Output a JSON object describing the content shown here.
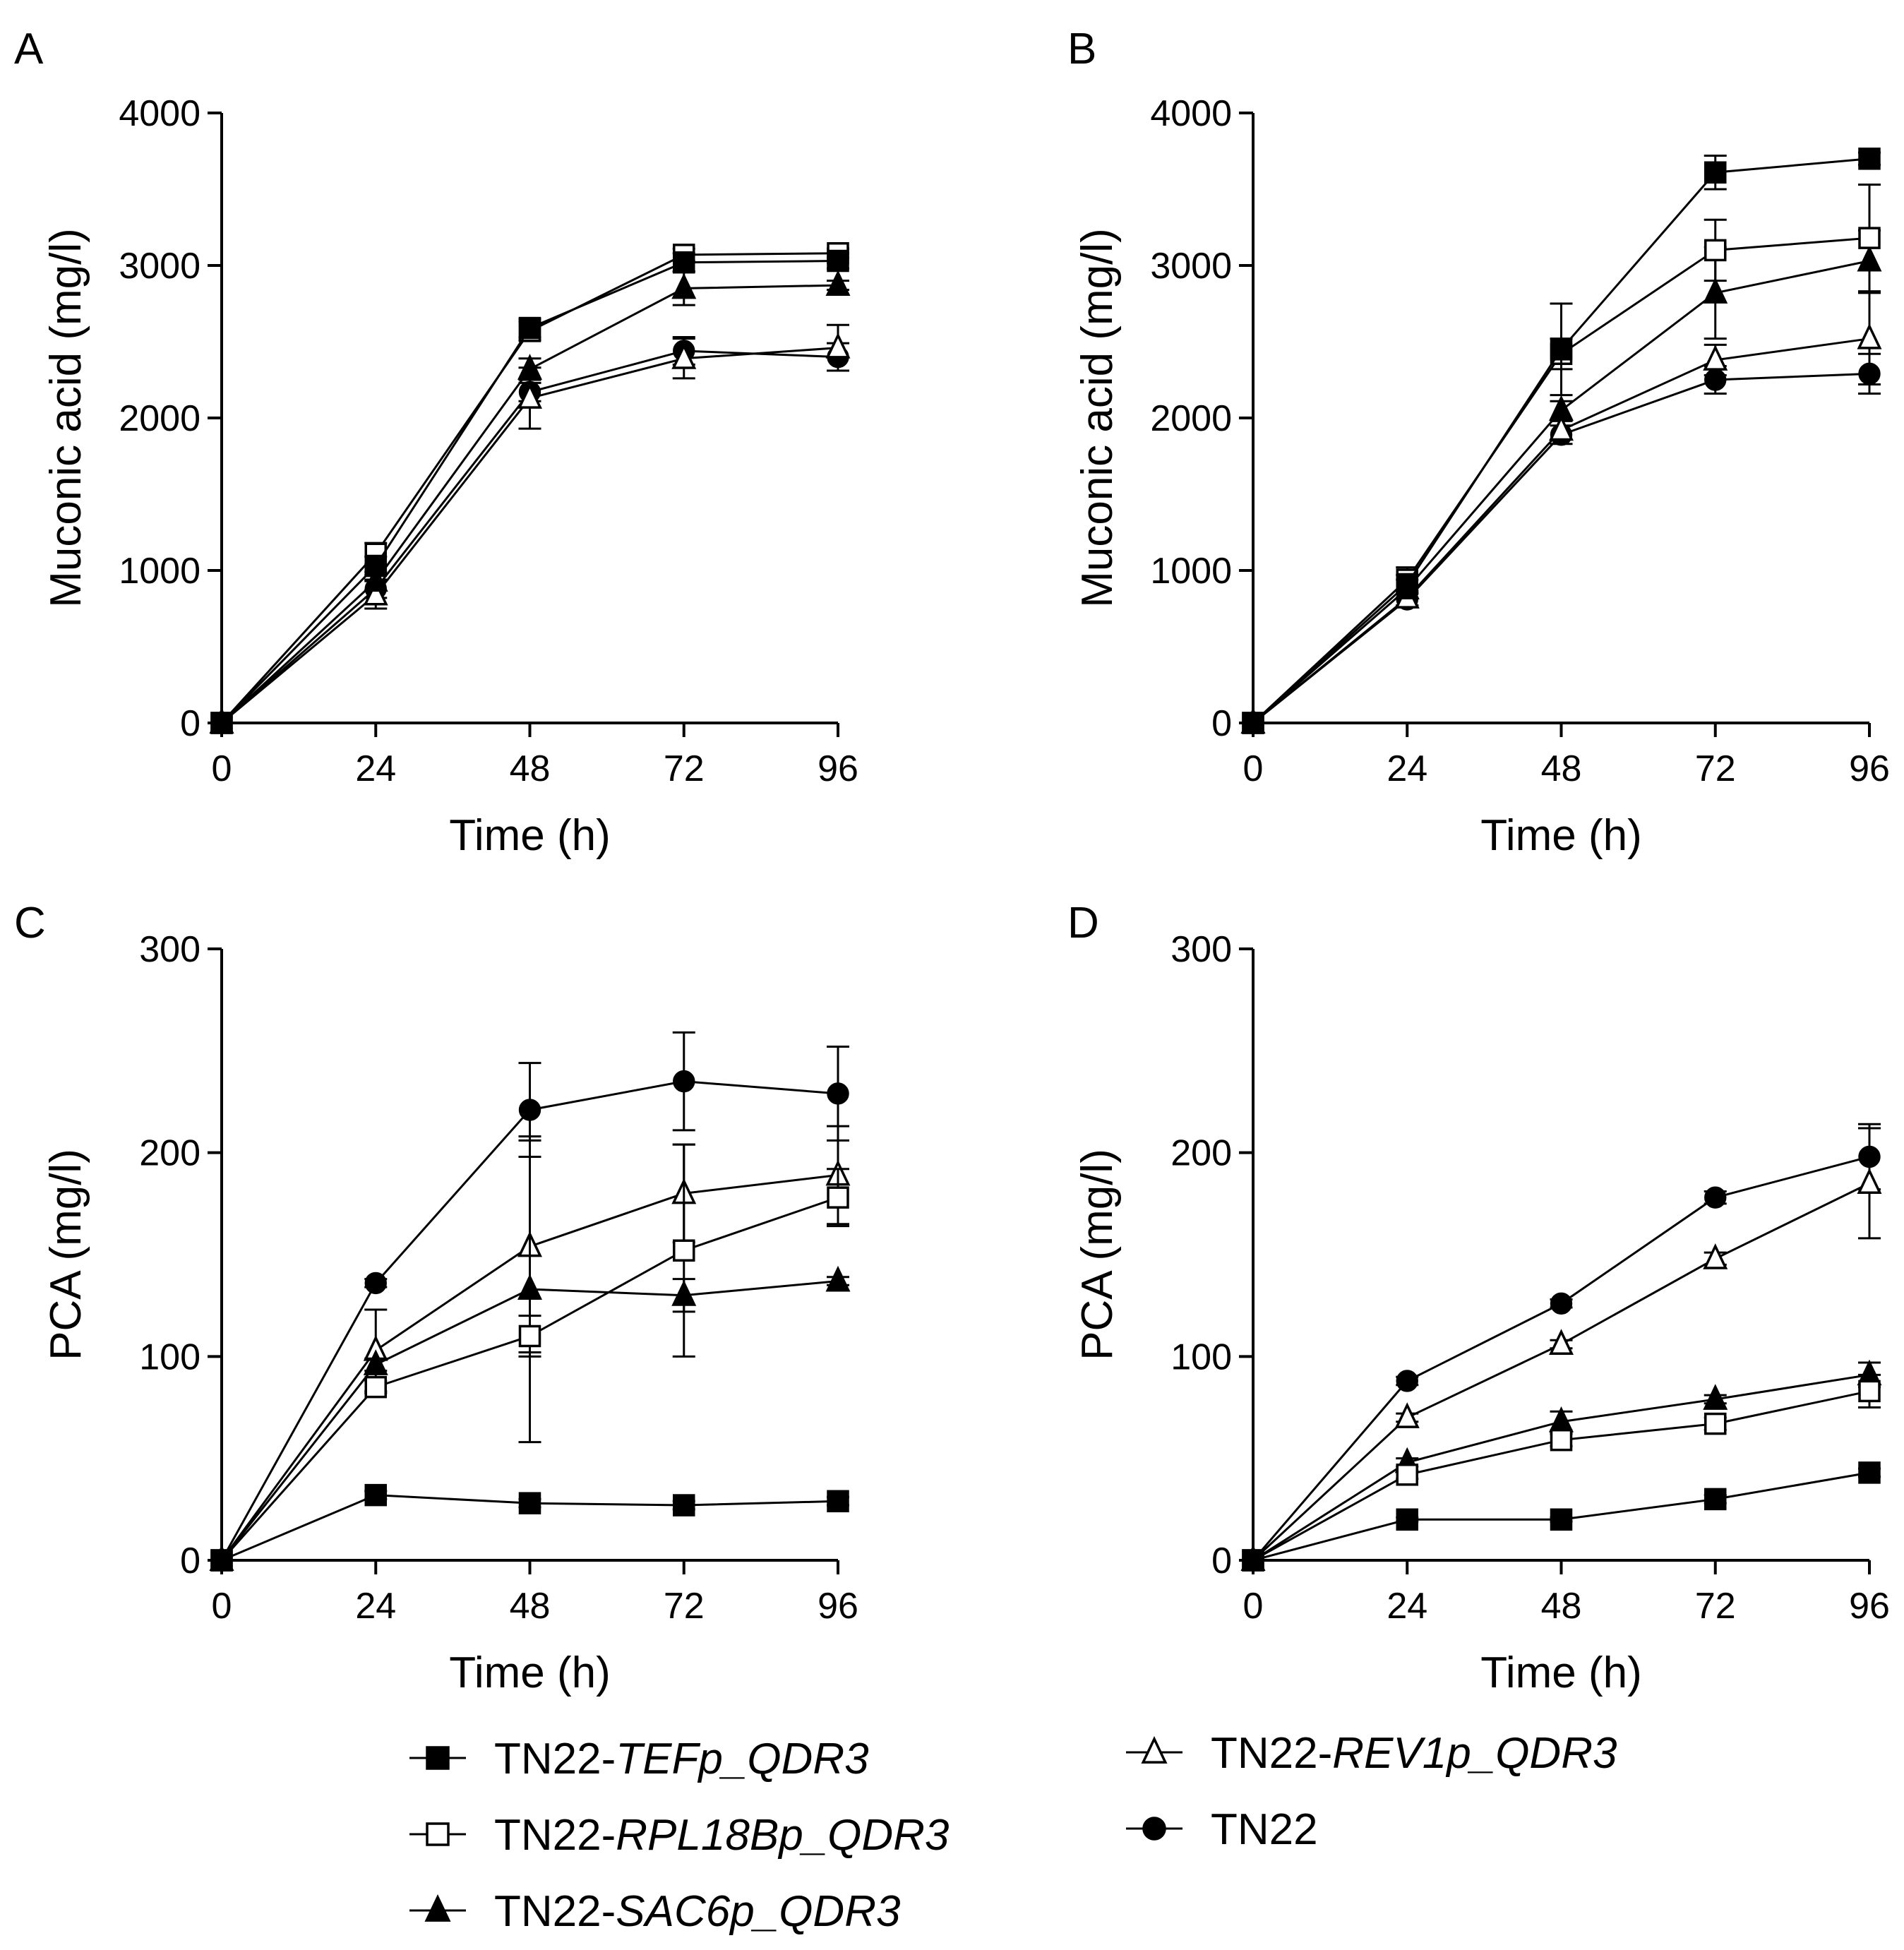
{
  "chart_data": [
    {
      "type": "line",
      "panel": "A",
      "xlabel": "Time (h)",
      "ylabel": "Muconic acid (mg/l)",
      "xlim": [
        0,
        96
      ],
      "ylim": [
        0,
        4000
      ],
      "xticks": [
        "0",
        "24",
        "48",
        "72",
        "96"
      ],
      "yticks": [
        "0",
        "1000",
        "2000",
        "3000",
        "4000"
      ],
      "grid": false,
      "x": [
        0,
        24,
        48,
        72,
        96
      ],
      "series": [
        {
          "name_prefix": "TN22-",
          "name_italic": "TEFp_QDR3",
          "marker": "filled-square",
          "values": [
            0,
            1030,
            2590,
            3020,
            3030
          ],
          "errors": [
            0,
            60,
            60,
            60,
            50
          ]
        },
        {
          "name_prefix": "TN22-",
          "name_italic": "RPL18Bp_QDR3",
          "marker": "open-square",
          "values": [
            0,
            1110,
            2570,
            3070,
            3080
          ],
          "errors": [
            0,
            70,
            60,
            40,
            30
          ]
        },
        {
          "name_prefix": "TN22-",
          "name_italic": "SAC6p_QDR3",
          "marker": "filled-triangle",
          "values": [
            0,
            930,
            2320,
            2850,
            2870
          ],
          "errors": [
            0,
            60,
            70,
            110,
            30
          ]
        },
        {
          "name_prefix": "TN22-",
          "name_italic": "REV1p_QDR3",
          "marker": "open-triangle",
          "values": [
            0,
            840,
            2130,
            2390,
            2460
          ],
          "errors": [
            0,
            90,
            200,
            130,
            150
          ]
        },
        {
          "name_prefix": "TN22",
          "name_italic": "",
          "marker": "filled-circle",
          "values": [
            0,
            880,
            2170,
            2440,
            2400
          ],
          "errors": [
            0,
            60,
            60,
            90,
            90
          ]
        }
      ]
    },
    {
      "type": "line",
      "panel": "B",
      "xlabel": "Time (h)",
      "ylabel": "Muconic acid (mg/l)",
      "xlim": [
        0,
        96
      ],
      "ylim": [
        0,
        4000
      ],
      "xticks": [
        "0",
        "24",
        "48",
        "72",
        "96"
      ],
      "yticks": [
        "0",
        "1000",
        "2000",
        "3000",
        "4000"
      ],
      "grid": false,
      "x": [
        0,
        24,
        48,
        72,
        96
      ],
      "series": [
        {
          "name_prefix": "TN22-",
          "name_italic": "TEFp_QDR3",
          "marker": "filled-square",
          "values": [
            0,
            910,
            2450,
            3610,
            3700
          ],
          "errors": [
            0,
            60,
            300,
            110,
            40
          ]
        },
        {
          "name_prefix": "TN22-",
          "name_italic": "RPL18Bp_QDR3",
          "marker": "open-square",
          "values": [
            0,
            940,
            2420,
            3100,
            3180
          ],
          "errors": [
            0,
            80,
            100,
            200,
            350
          ]
        },
        {
          "name_prefix": "TN22-",
          "name_italic": "SAC6p_QDR3",
          "marker": "filled-triangle",
          "values": [
            0,
            880,
            2050,
            2820,
            3030
          ],
          "errors": [
            0,
            60,
            60,
            300,
            200
          ]
        },
        {
          "name_prefix": "TN22-",
          "name_italic": "REV1p_QDR3",
          "marker": "open-triangle",
          "values": [
            0,
            820,
            1920,
            2380,
            2520
          ],
          "errors": [
            0,
            50,
            60,
            100,
            300
          ]
        },
        {
          "name_prefix": "TN22",
          "name_italic": "",
          "marker": "filled-circle",
          "values": [
            0,
            810,
            1890,
            2250,
            2290
          ],
          "errors": [
            0,
            40,
            60,
            90,
            130
          ]
        }
      ]
    },
    {
      "type": "line",
      "panel": "C",
      "xlabel": "Time (h)",
      "ylabel": "PCA (mg/l)",
      "xlim": [
        0,
        96
      ],
      "ylim": [
        0,
        300
      ],
      "xticks": [
        "0",
        "24",
        "48",
        "72",
        "96"
      ],
      "yticks": [
        "0",
        "100",
        "200",
        "300"
      ],
      "grid": false,
      "x": [
        0,
        24,
        48,
        72,
        96
      ],
      "series": [
        {
          "name_prefix": "TN22-",
          "name_italic": "TEFp_QDR3",
          "marker": "filled-square",
          "values": [
            0,
            32,
            28,
            27,
            29
          ],
          "errors": [
            0,
            2,
            2,
            2,
            2
          ]
        },
        {
          "name_prefix": "TN22-",
          "name_italic": "RPL18Bp_QDR3",
          "marker": "open-square",
          "values": [
            0,
            85,
            110,
            152,
            178
          ],
          "errors": [
            0,
            3,
            10,
            52,
            14
          ]
        },
        {
          "name_prefix": "TN22-",
          "name_italic": "SAC6p_QDR3",
          "marker": "filled-triangle",
          "values": [
            0,
            96,
            133,
            130,
            137
          ],
          "errors": [
            0,
            3,
            75,
            8,
            2
          ]
        },
        {
          "name_prefix": "TN22-",
          "name_italic": "REV1p_QDR3",
          "marker": "open-triangle",
          "values": [
            0,
            103,
            154,
            180,
            189
          ],
          "errors": [
            0,
            20,
            52,
            24,
            24
          ]
        },
        {
          "name_prefix": "TN22",
          "name_italic": "",
          "marker": "filled-circle",
          "values": [
            0,
            136,
            221,
            235,
            229
          ],
          "errors": [
            0,
            2,
            23,
            24,
            23
          ]
        }
      ]
    },
    {
      "type": "line",
      "panel": "D",
      "xlabel": "Time (h)",
      "ylabel": "PCA (mg/l)",
      "xlim": [
        0,
        96
      ],
      "ylim": [
        0,
        300
      ],
      "xticks": [
        "0",
        "24",
        "48",
        "72",
        "96"
      ],
      "yticks": [
        "0",
        "100",
        "200",
        "300"
      ],
      "grid": false,
      "x": [
        0,
        24,
        48,
        72,
        96
      ],
      "series": [
        {
          "name_prefix": "TN22-",
          "name_italic": "TEFp_QDR3",
          "marker": "filled-square",
          "values": [
            0,
            20,
            20,
            30,
            43
          ],
          "errors": [
            0,
            1,
            1,
            2,
            2
          ]
        },
        {
          "name_prefix": "TN22-",
          "name_italic": "RPL18Bp_QDR3",
          "marker": "open-square",
          "values": [
            0,
            42,
            59,
            67,
            83
          ],
          "errors": [
            0,
            2,
            3,
            3,
            8
          ]
        },
        {
          "name_prefix": "TN22-",
          "name_italic": "SAC6p_QDR3",
          "marker": "filled-triangle",
          "values": [
            0,
            48,
            68,
            79,
            91
          ],
          "errors": [
            0,
            2,
            5,
            2,
            6
          ]
        },
        {
          "name_prefix": "TN22-",
          "name_italic": "REV1p_QDR3",
          "marker": "open-triangle",
          "values": [
            0,
            70,
            106,
            148,
            185
          ],
          "errors": [
            0,
            2,
            2,
            3,
            27
          ]
        },
        {
          "name_prefix": "TN22",
          "name_italic": "",
          "marker": "filled-circle",
          "values": [
            0,
            88,
            126,
            178,
            198
          ],
          "errors": [
            0,
            2,
            2,
            3,
            16
          ]
        }
      ]
    }
  ],
  "legend": {
    "placement": "bottom",
    "items": [
      {
        "prefix": "TN22-",
        "italic": "TEFp_QDR3",
        "marker": "filled-square"
      },
      {
        "prefix": "TN22-",
        "italic": "RPL18Bp_QDR3",
        "marker": "open-square"
      },
      {
        "prefix": "TN22-",
        "italic": "SAC6p_QDR3",
        "marker": "filled-triangle"
      },
      {
        "prefix": "TN22-",
        "italic": "REV1p_QDR3",
        "marker": "open-triangle"
      },
      {
        "prefix": "TN22",
        "italic": "",
        "marker": "filled-circle"
      }
    ]
  },
  "colors": {
    "ink": "#000000",
    "background": "#ffffff"
  }
}
